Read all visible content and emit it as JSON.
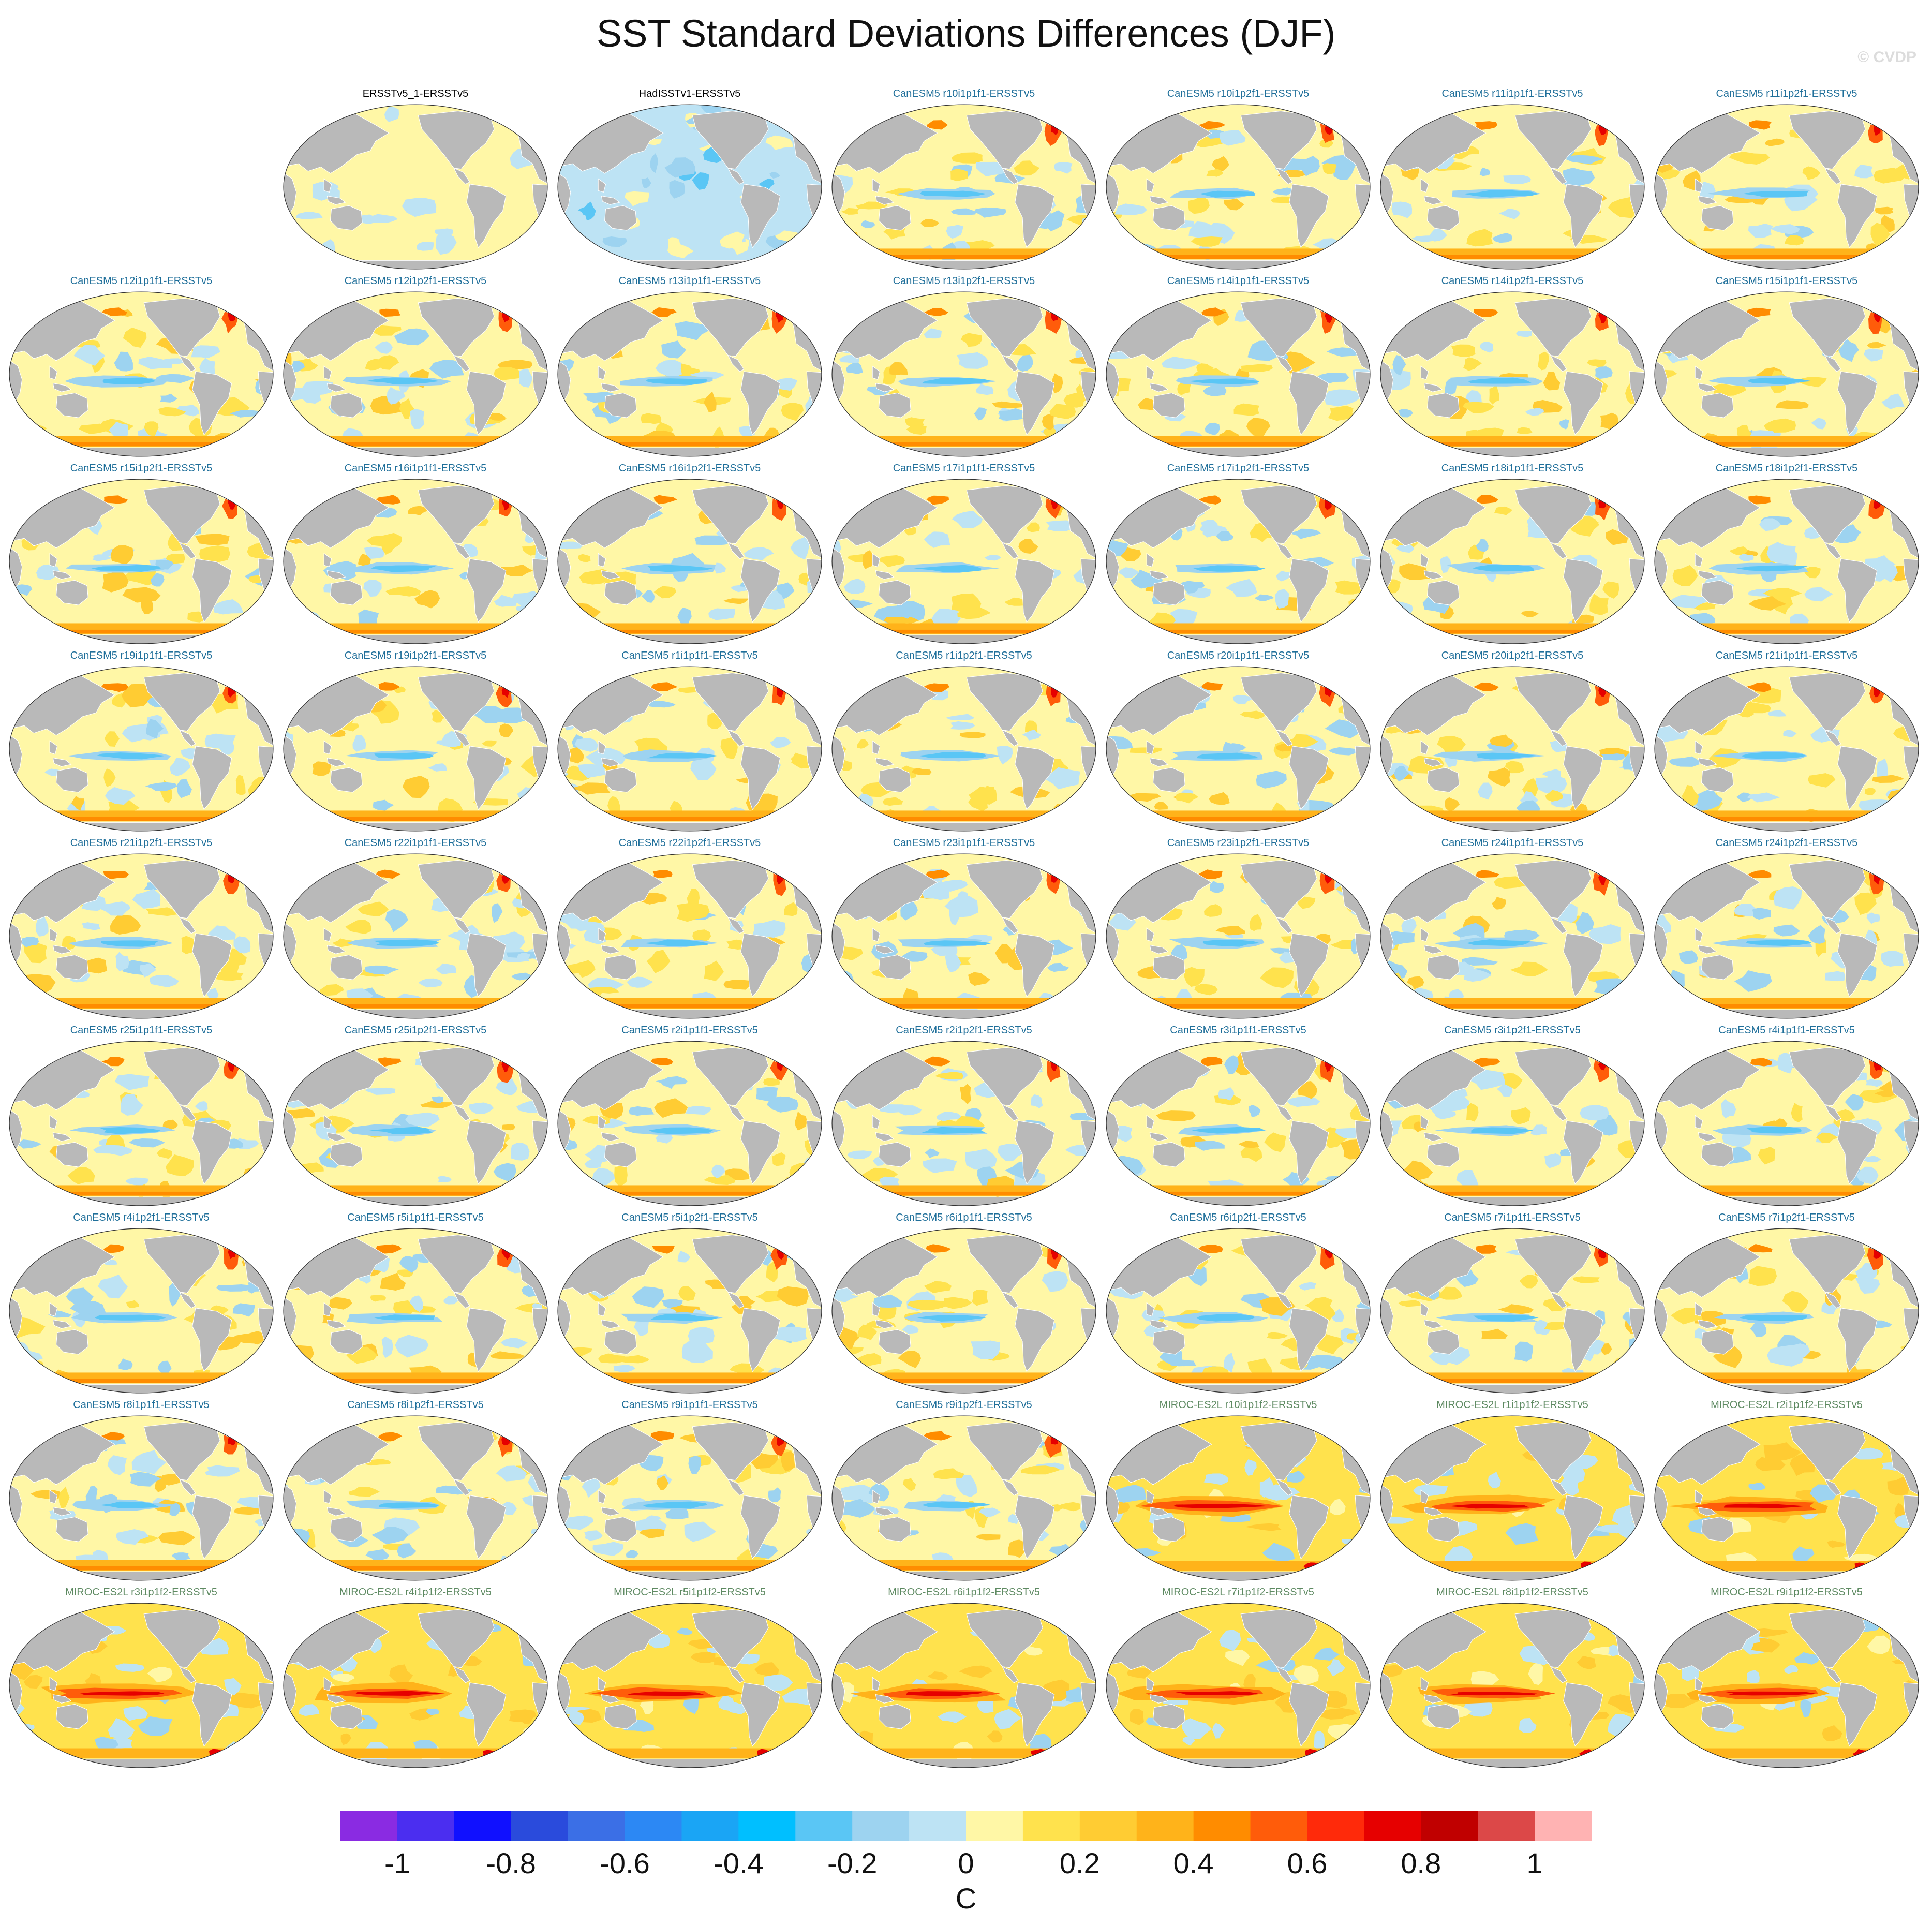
{
  "title": "SST Standard Deviations Differences (DJF)",
  "credit": "© CVDP",
  "colors": {
    "land": "#b9b9b9",
    "obs_title": "#000000",
    "canesm_title": "#1f6f9a",
    "miroc_title": "#5e8a62"
  },
  "chart_data": {
    "type": "heatmap",
    "description_type": "grid of global map panels",
    "variable": "SST standard deviation difference",
    "season": "DJF",
    "units": "C",
    "colorbar": {
      "levels": [
        -1.1,
        -1.0,
        -0.9,
        -0.8,
        -0.7,
        -0.6,
        -0.5,
        -0.4,
        -0.3,
        -0.2,
        -0.1,
        0,
        0.1,
        0.2,
        0.3,
        0.4,
        0.5,
        0.6,
        0.7,
        0.8,
        0.9,
        1.0,
        1.1
      ],
      "colors": [
        "#8a2be2",
        "#4b2ef0",
        "#1010ff",
        "#2a4bdc",
        "#3b6fe6",
        "#2c88f4",
        "#1aa5f5",
        "#00bfff",
        "#5ac6f5",
        "#9dd3f0",
        "#bde3f4",
        "#fff7a6",
        "#ffe24d",
        "#ffcc33",
        "#ffb31a",
        "#ff8c00",
        "#ff5c0a",
        "#ff2a0a",
        "#e60000",
        "#c00000",
        "#dc4848",
        "#ffb3b3"
      ],
      "tick_values": [
        -1,
        -0.8,
        -0.6,
        -0.4,
        -0.2,
        0,
        0.2,
        0.4,
        0.6,
        0.8,
        1
      ],
      "tick_labels": [
        "-1",
        "-0.8",
        "-0.6",
        "-0.4",
        "-0.2",
        "0",
        "0.2",
        "0.4",
        "0.6",
        "0.8",
        "1"
      ],
      "label": "C"
    },
    "panels": [
      {
        "label": "ERSSTv5_1-ERSSTv5",
        "group": "obs",
        "style": "obs1"
      },
      {
        "label": "HadISSTv1-ERSSTv5",
        "group": "obs",
        "style": "obs2"
      },
      {
        "label": "CanESM5 r10i1p1f1-ERSSTv5",
        "group": "canesm",
        "style": "canesm"
      },
      {
        "label": "CanESM5 r10i1p2f1-ERSSTv5",
        "group": "canesm",
        "style": "canesm"
      },
      {
        "label": "CanESM5 r11i1p1f1-ERSSTv5",
        "group": "canesm",
        "style": "canesm"
      },
      {
        "label": "CanESM5 r11i1p2f1-ERSSTv5",
        "group": "canesm",
        "style": "canesm"
      },
      {
        "label": "CanESM5 r12i1p1f1-ERSSTv5",
        "group": "canesm",
        "style": "canesm"
      },
      {
        "label": "CanESM5 r12i1p2f1-ERSSTv5",
        "group": "canesm",
        "style": "canesm"
      },
      {
        "label": "CanESM5 r13i1p1f1-ERSSTv5",
        "group": "canesm",
        "style": "canesm"
      },
      {
        "label": "CanESM5 r13i1p2f1-ERSSTv5",
        "group": "canesm",
        "style": "canesm"
      },
      {
        "label": "CanESM5 r14i1p1f1-ERSSTv5",
        "group": "canesm",
        "style": "canesm"
      },
      {
        "label": "CanESM5 r14i1p2f1-ERSSTv5",
        "group": "canesm",
        "style": "canesm"
      },
      {
        "label": "CanESM5 r15i1p1f1-ERSSTv5",
        "group": "canesm",
        "style": "canesm"
      },
      {
        "label": "CanESM5 r15i1p2f1-ERSSTv5",
        "group": "canesm",
        "style": "canesm"
      },
      {
        "label": "CanESM5 r16i1p1f1-ERSSTv5",
        "group": "canesm",
        "style": "canesm"
      },
      {
        "label": "CanESM5 r16i1p2f1-ERSSTv5",
        "group": "canesm",
        "style": "canesm"
      },
      {
        "label": "CanESM5 r17i1p1f1-ERSSTv5",
        "group": "canesm",
        "style": "canesm"
      },
      {
        "label": "CanESM5 r17i1p2f1-ERSSTv5",
        "group": "canesm",
        "style": "canesm"
      },
      {
        "label": "CanESM5 r18i1p1f1-ERSSTv5",
        "group": "canesm",
        "style": "canesm"
      },
      {
        "label": "CanESM5 r18i1p2f1-ERSSTv5",
        "group": "canesm",
        "style": "canesm"
      },
      {
        "label": "CanESM5 r19i1p1f1-ERSSTv5",
        "group": "canesm",
        "style": "canesm"
      },
      {
        "label": "CanESM5 r19i1p2f1-ERSSTv5",
        "group": "canesm",
        "style": "canesm"
      },
      {
        "label": "CanESM5 r1i1p1f1-ERSSTv5",
        "group": "canesm",
        "style": "canesm"
      },
      {
        "label": "CanESM5 r1i1p2f1-ERSSTv5",
        "group": "canesm",
        "style": "canesm"
      },
      {
        "label": "CanESM5 r20i1p1f1-ERSSTv5",
        "group": "canesm",
        "style": "canesm"
      },
      {
        "label": "CanESM5 r20i1p2f1-ERSSTv5",
        "group": "canesm",
        "style": "canesm"
      },
      {
        "label": "CanESM5 r21i1p1f1-ERSSTv5",
        "group": "canesm",
        "style": "canesm"
      },
      {
        "label": "CanESM5 r21i1p2f1-ERSSTv5",
        "group": "canesm",
        "style": "canesm"
      },
      {
        "label": "CanESM5 r22i1p1f1-ERSSTv5",
        "group": "canesm",
        "style": "canesm"
      },
      {
        "label": "CanESM5 r22i1p2f1-ERSSTv5",
        "group": "canesm",
        "style": "canesm"
      },
      {
        "label": "CanESM5 r23i1p1f1-ERSSTv5",
        "group": "canesm",
        "style": "canesm"
      },
      {
        "label": "CanESM5 r23i1p2f1-ERSSTv5",
        "group": "canesm",
        "style": "canesm"
      },
      {
        "label": "CanESM5 r24i1p1f1-ERSSTv5",
        "group": "canesm",
        "style": "canesm"
      },
      {
        "label": "CanESM5 r24i1p2f1-ERSSTv5",
        "group": "canesm",
        "style": "canesm"
      },
      {
        "label": "CanESM5 r25i1p1f1-ERSSTv5",
        "group": "canesm",
        "style": "canesm"
      },
      {
        "label": "CanESM5 r25i1p2f1-ERSSTv5",
        "group": "canesm",
        "style": "canesm"
      },
      {
        "label": "CanESM5 r2i1p1f1-ERSSTv5",
        "group": "canesm",
        "style": "canesm"
      },
      {
        "label": "CanESM5 r2i1p2f1-ERSSTv5",
        "group": "canesm",
        "style": "canesm"
      },
      {
        "label": "CanESM5 r3i1p1f1-ERSSTv5",
        "group": "canesm",
        "style": "canesm"
      },
      {
        "label": "CanESM5 r3i1p2f1-ERSSTv5",
        "group": "canesm",
        "style": "canesm"
      },
      {
        "label": "CanESM5 r4i1p1f1-ERSSTv5",
        "group": "canesm",
        "style": "canesm"
      },
      {
        "label": "CanESM5 r4i1p2f1-ERSSTv5",
        "group": "canesm",
        "style": "canesm"
      },
      {
        "label": "CanESM5 r5i1p1f1-ERSSTv5",
        "group": "canesm",
        "style": "canesm"
      },
      {
        "label": "CanESM5 r5i1p2f1-ERSSTv5",
        "group": "canesm",
        "style": "canesm"
      },
      {
        "label": "CanESM5 r6i1p1f1-ERSSTv5",
        "group": "canesm",
        "style": "canesm"
      },
      {
        "label": "CanESM5 r6i1p2f1-ERSSTv5",
        "group": "canesm",
        "style": "canesm"
      },
      {
        "label": "CanESM5 r7i1p1f1-ERSSTv5",
        "group": "canesm",
        "style": "canesm"
      },
      {
        "label": "CanESM5 r7i1p2f1-ERSSTv5",
        "group": "canesm",
        "style": "canesm"
      },
      {
        "label": "CanESM5 r8i1p1f1-ERSSTv5",
        "group": "canesm",
        "style": "canesm"
      },
      {
        "label": "CanESM5 r8i1p2f1-ERSSTv5",
        "group": "canesm",
        "style": "canesm"
      },
      {
        "label": "CanESM5 r9i1p1f1-ERSSTv5",
        "group": "canesm",
        "style": "canesm"
      },
      {
        "label": "CanESM5 r9i1p2f1-ERSSTv5",
        "group": "canesm",
        "style": "canesm"
      },
      {
        "label": "MIROC-ES2L r10i1p1f2-ERSSTv5",
        "group": "miroc",
        "style": "miroc"
      },
      {
        "label": "MIROC-ES2L r1i1p1f2-ERSSTv5",
        "group": "miroc",
        "style": "miroc"
      },
      {
        "label": "MIROC-ES2L r2i1p1f2-ERSSTv5",
        "group": "miroc",
        "style": "miroc"
      },
      {
        "label": "MIROC-ES2L r3i1p1f2-ERSSTv5",
        "group": "miroc",
        "style": "miroc"
      },
      {
        "label": "MIROC-ES2L r4i1p1f2-ERSSTv5",
        "group": "miroc",
        "style": "miroc"
      },
      {
        "label": "MIROC-ES2L r5i1p1f2-ERSSTv5",
        "group": "miroc",
        "style": "miroc"
      },
      {
        "label": "MIROC-ES2L r6i1p1f2-ERSSTv5",
        "group": "miroc",
        "style": "miroc"
      },
      {
        "label": "MIROC-ES2L r7i1p1f2-ERSSTv5",
        "group": "miroc",
        "style": "miroc"
      },
      {
        "label": "MIROC-ES2L r8i1p1f2-ERSSTv5",
        "group": "miroc",
        "style": "miroc"
      },
      {
        "label": "MIROC-ES2L r9i1p1f2-ERSSTv5",
        "group": "miroc",
        "style": "miroc"
      }
    ]
  }
}
